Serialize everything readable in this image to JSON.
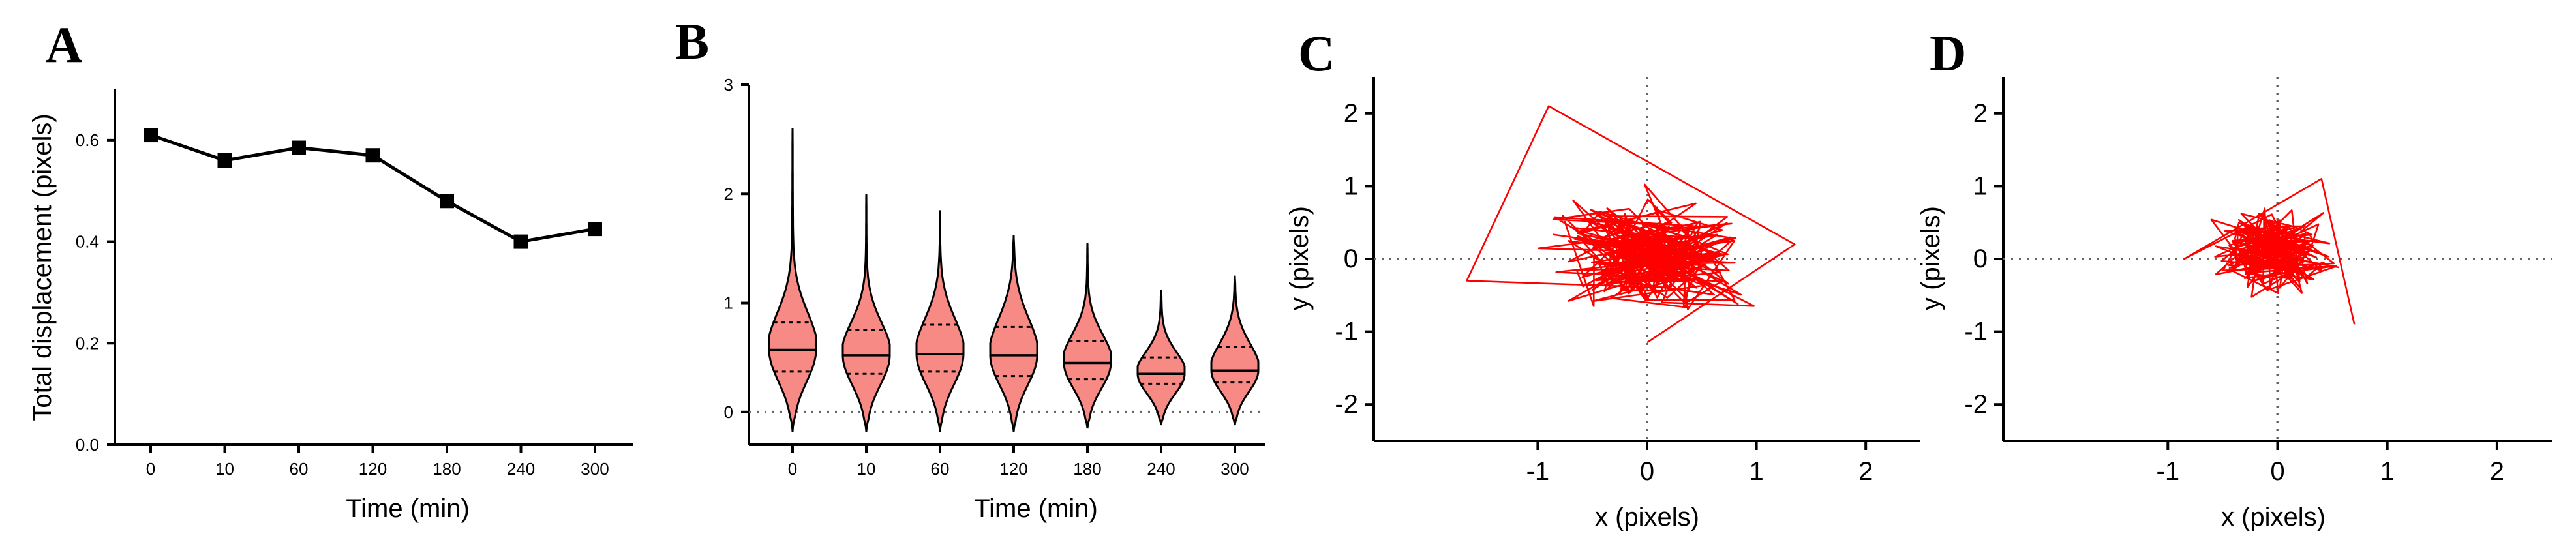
{
  "colors": {
    "violin_fill": "#f88a86",
    "track": "#ff0000",
    "line": "#000000"
  },
  "chart_data": [
    {
      "panel": "A",
      "type": "line",
      "categories": [
        "0",
        "10",
        "60",
        "120",
        "180",
        "240",
        "300"
      ],
      "values": [
        0.61,
        0.56,
        0.585,
        0.57,
        0.48,
        0.4,
        0.425
      ],
      "marker": "square",
      "xlabel": "Time (min)",
      "ylabel": "Total displacement (pixels)",
      "ylim": [
        0.0,
        0.7
      ],
      "yticks": [
        "0.0",
        "0.2",
        "0.4",
        "0.6"
      ]
    },
    {
      "panel": "B",
      "type": "violin",
      "categories": [
        "0",
        "10",
        "60",
        "120",
        "180",
        "240",
        "300"
      ],
      "violins": [
        {
          "min": -0.18,
          "q1": 0.37,
          "median": 0.57,
          "q3": 0.82,
          "max": 2.6
        },
        {
          "min": -0.18,
          "q1": 0.35,
          "median": 0.52,
          "q3": 0.75,
          "max": 2.0
        },
        {
          "min": -0.18,
          "q1": 0.37,
          "median": 0.53,
          "q3": 0.8,
          "max": 1.85
        },
        {
          "min": -0.18,
          "q1": 0.33,
          "median": 0.52,
          "q3": 0.78,
          "max": 1.62
        },
        {
          "min": -0.15,
          "q1": 0.3,
          "median": 0.45,
          "q3": 0.65,
          "max": 1.55
        },
        {
          "min": -0.12,
          "q1": 0.26,
          "median": 0.35,
          "q3": 0.5,
          "max": 1.12
        },
        {
          "min": -0.12,
          "q1": 0.27,
          "median": 0.38,
          "q3": 0.6,
          "max": 1.25
        }
      ],
      "xlabel": "Time (min)",
      "ylabel": "",
      "ylim": [
        -0.3,
        3
      ],
      "yticks": [
        "0",
        "1",
        "2",
        "3"
      ],
      "reference_line_y": 0
    },
    {
      "panel": "C",
      "type": "line",
      "description_kind": "trajectory",
      "xlabel": "x (pixels)",
      "ylabel": "y (pixels)",
      "xlim": [
        -2.5,
        2.5
      ],
      "ylim": [
        -2.5,
        2.5
      ],
      "xticks": [
        "-1",
        "0",
        "1",
        "2"
      ],
      "yticks": [
        "-2",
        "-1",
        "0",
        "1",
        "2"
      ],
      "reference_lines": {
        "x": 0,
        "y": 0
      },
      "extent": {
        "x": [
          -1.65,
          1.35
        ],
        "y": [
          -1.15,
          2.1
        ]
      }
    },
    {
      "panel": "D",
      "type": "line",
      "description_kind": "trajectory",
      "xlabel": "x (pixels)",
      "ylabel": "y (pixels)",
      "xlim": [
        -2.5,
        2.5
      ],
      "ylim": [
        -2.5,
        2.5
      ],
      "xticks": [
        "-1",
        "0",
        "1",
        "2"
      ],
      "yticks": [
        "-2",
        "-1",
        "0",
        "1",
        "2"
      ],
      "reference_lines": {
        "x": 0,
        "y": 0
      },
      "extent": {
        "x": [
          -0.85,
          0.7
        ],
        "y": [
          -0.95,
          1.1
        ]
      }
    }
  ]
}
